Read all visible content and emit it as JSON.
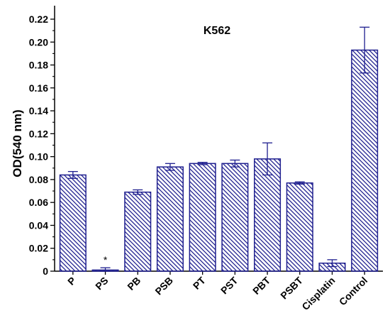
{
  "chart_data": {
    "type": "bar",
    "title": "K562",
    "xlabel": "",
    "ylabel": "OD(540 nm)",
    "ylim": [
      0,
      0.22
    ],
    "yticks": [
      "0",
      "0.02",
      "0.04",
      "0.06",
      "0.08",
      "0.10",
      "0.12",
      "0.14",
      "0.16",
      "0.18",
      "0.20",
      "0.22"
    ],
    "categories": [
      "P",
      "PS",
      "PB",
      "PSB",
      "PT",
      "PST",
      "PBT",
      "PSBT",
      "Cisplatin",
      "Control"
    ],
    "values": [
      0.084,
      0.001,
      0.069,
      0.091,
      0.094,
      0.094,
      0.098,
      0.077,
      0.007,
      0.193
    ],
    "errors": [
      0.003,
      0.002,
      0.002,
      0.003,
      0.001,
      0.003,
      0.014,
      0.001,
      0.003,
      0.02
    ],
    "annotations": [
      {
        "category": "PS",
        "text": "*"
      }
    ],
    "bar_fill": "hatched",
    "bar_color": "#1f1f8f",
    "grid": false
  }
}
